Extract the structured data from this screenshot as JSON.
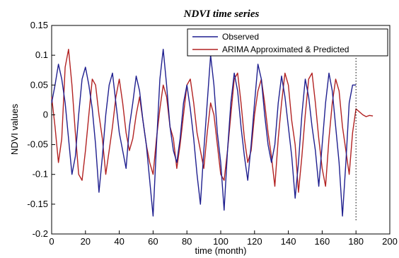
{
  "chart_data": {
    "type": "line",
    "title": "NDVI time series",
    "xlabel": "time (month)",
    "ylabel": "NDVI values",
    "xlim": [
      0,
      200
    ],
    "ylim": [
      -0.2,
      0.15
    ],
    "xticks": [
      "0",
      "20",
      "40",
      "60",
      "80",
      "100",
      "120",
      "140",
      "160",
      "180",
      "200"
    ],
    "yticks": [
      "0.15",
      "0.1",
      "0.05",
      "0",
      "-0.05",
      "-0.1",
      "-0.15",
      "-0.2"
    ],
    "grid": false,
    "legend_position": "top-right",
    "marker_x": 180,
    "series": [
      {
        "name": "Observed",
        "color": "#1f1f8f",
        "x": [
          0,
          2,
          4,
          6,
          8,
          10,
          12,
          14,
          16,
          18,
          20,
          22,
          24,
          26,
          28,
          30,
          32,
          34,
          36,
          38,
          40,
          42,
          44,
          46,
          48,
          50,
          52,
          54,
          56,
          58,
          60,
          62,
          64,
          66,
          68,
          70,
          72,
          74,
          76,
          78,
          80,
          82,
          84,
          86,
          88,
          90,
          92,
          94,
          96,
          98,
          100,
          102,
          104,
          106,
          108,
          110,
          112,
          114,
          116,
          118,
          120,
          122,
          124,
          126,
          128,
          130,
          132,
          134,
          136,
          138,
          140,
          142,
          144,
          146,
          148,
          150,
          152,
          154,
          156,
          158,
          160,
          162,
          164,
          166,
          168,
          170,
          172,
          174,
          176,
          178,
          180
        ],
        "y": [
          0.02,
          0.05,
          0.085,
          0.06,
          0.02,
          -0.04,
          -0.1,
          -0.07,
          0.0,
          0.06,
          0.08,
          0.05,
          0.01,
          -0.05,
          -0.13,
          -0.07,
          0.0,
          0.05,
          0.07,
          0.02,
          -0.03,
          -0.06,
          -0.09,
          -0.02,
          0.02,
          0.065,
          0.04,
          -0.01,
          -0.05,
          -0.11,
          -0.17,
          -0.05,
          0.06,
          0.11,
          0.05,
          -0.02,
          -0.06,
          -0.08,
          -0.04,
          0.02,
          0.05,
          0.01,
          -0.04,
          -0.1,
          -0.15,
          -0.06,
          0.02,
          0.1,
          0.05,
          -0.03,
          -0.08,
          -0.16,
          -0.06,
          0.02,
          0.07,
          0.04,
          -0.02,
          -0.07,
          -0.11,
          -0.05,
          0.02,
          0.085,
          0.06,
          0.0,
          -0.05,
          -0.08,
          -0.05,
          0.02,
          0.065,
          0.03,
          -0.02,
          -0.07,
          -0.14,
          -0.08,
          0.0,
          0.06,
          0.03,
          -0.02,
          -0.06,
          -0.12,
          -0.05,
          0.02,
          0.07,
          0.04,
          -0.02,
          -0.08,
          -0.17,
          -0.08,
          0.02,
          0.05,
          0.05
        ]
      },
      {
        "name": "ARIMA Approximated & Predicted",
        "color": "#b22222",
        "x": [
          0,
          2,
          4,
          6,
          8,
          10,
          12,
          14,
          16,
          18,
          20,
          22,
          24,
          26,
          28,
          30,
          32,
          34,
          36,
          38,
          40,
          42,
          44,
          46,
          48,
          50,
          52,
          54,
          56,
          58,
          60,
          62,
          64,
          66,
          68,
          70,
          72,
          74,
          76,
          78,
          80,
          82,
          84,
          86,
          88,
          90,
          92,
          94,
          96,
          98,
          100,
          102,
          104,
          106,
          108,
          110,
          112,
          114,
          116,
          118,
          120,
          122,
          124,
          126,
          128,
          130,
          132,
          134,
          136,
          138,
          140,
          142,
          144,
          146,
          148,
          150,
          152,
          154,
          156,
          158,
          160,
          162,
          164,
          166,
          168,
          170,
          172,
          174,
          176,
          178,
          180,
          182,
          184,
          186,
          188,
          190
        ],
        "y": [
          0.03,
          -0.02,
          -0.08,
          -0.04,
          0.08,
          0.11,
          0.05,
          -0.03,
          -0.1,
          -0.11,
          -0.06,
          0.0,
          0.06,
          0.05,
          0.0,
          -0.04,
          -0.1,
          -0.06,
          -0.02,
          0.03,
          0.06,
          0.02,
          -0.03,
          -0.06,
          -0.04,
          0.0,
          0.03,
          -0.01,
          -0.05,
          -0.08,
          -0.1,
          -0.04,
          0.01,
          0.05,
          0.03,
          -0.02,
          -0.04,
          -0.09,
          -0.05,
          0.0,
          0.05,
          0.06,
          0.02,
          -0.03,
          -0.06,
          -0.09,
          -0.03,
          0.02,
          0.0,
          -0.05,
          -0.1,
          -0.11,
          -0.06,
          0.0,
          0.06,
          0.07,
          0.02,
          -0.04,
          -0.08,
          -0.06,
          0.0,
          0.04,
          0.06,
          0.02,
          -0.03,
          -0.07,
          -0.12,
          -0.04,
          0.02,
          0.07,
          0.05,
          -0.01,
          -0.05,
          -0.13,
          -0.07,
          0.0,
          0.06,
          0.07,
          0.02,
          -0.04,
          -0.09,
          -0.12,
          -0.04,
          0.02,
          0.06,
          0.04,
          -0.02,
          -0.06,
          -0.1,
          -0.03,
          0.01,
          0.005,
          0.0,
          -0.003,
          -0.001,
          -0.002
        ]
      }
    ]
  }
}
